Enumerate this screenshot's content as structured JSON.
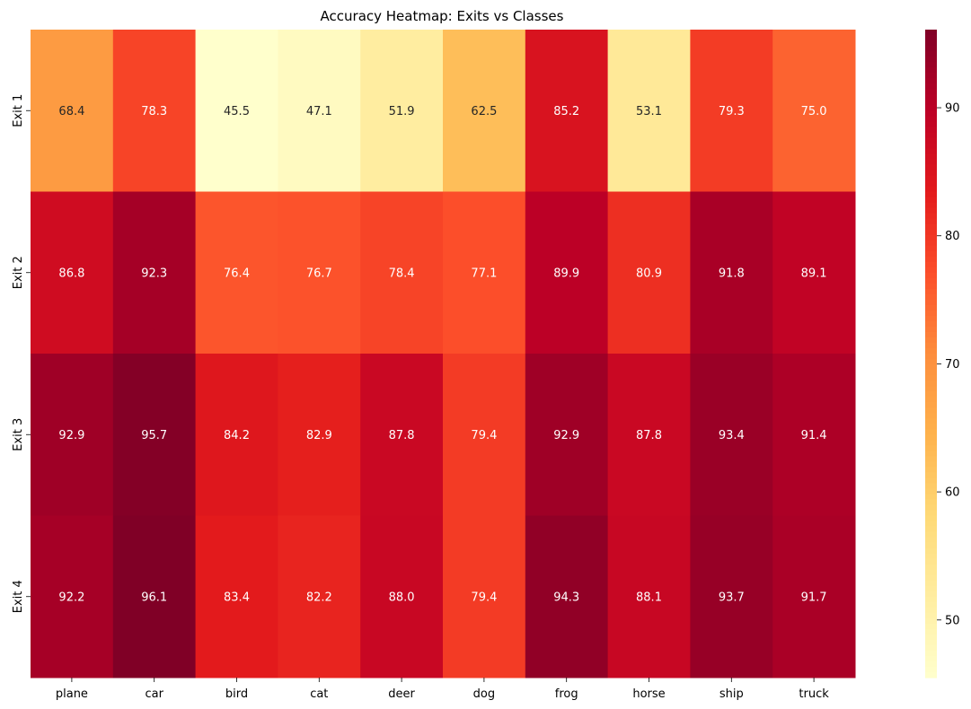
{
  "chart_data": {
    "type": "heatmap",
    "title": "Accuracy Heatmap: Exits vs Classes",
    "xlabel": "",
    "ylabel": "",
    "x": [
      "plane",
      "car",
      "bird",
      "cat",
      "deer",
      "dog",
      "frog",
      "horse",
      "ship",
      "truck"
    ],
    "y": [
      "Exit 1",
      "Exit 2",
      "Exit 3",
      "Exit 4"
    ],
    "values": [
      [
        68.4,
        78.3,
        45.5,
        47.1,
        51.9,
        62.5,
        85.2,
        53.1,
        79.3,
        75.0
      ],
      [
        86.8,
        92.3,
        76.4,
        76.7,
        78.4,
        77.1,
        89.9,
        80.9,
        91.8,
        89.1
      ],
      [
        92.9,
        95.7,
        84.2,
        82.9,
        87.8,
        79.4,
        92.9,
        87.8,
        93.4,
        91.4
      ],
      [
        92.2,
        96.1,
        83.4,
        82.2,
        88.0,
        79.4,
        94.3,
        88.1,
        93.7,
        91.7
      ]
    ],
    "colorbar": {
      "min": 45.5,
      "max": 96.1,
      "ticks": [
        50,
        60,
        70,
        80,
        90
      ],
      "colormap": "YlOrRd"
    },
    "grid": false,
    "annotations": true,
    "annotation_format": "1 decimal"
  }
}
